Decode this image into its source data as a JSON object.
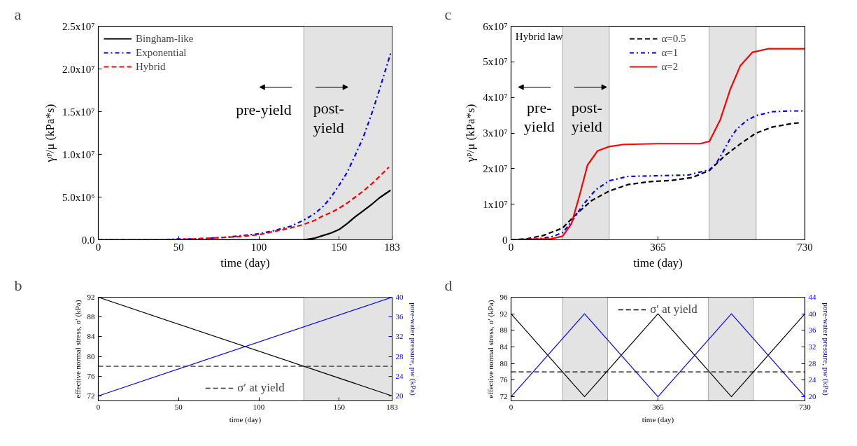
{
  "chart_data": [
    {
      "type": "line",
      "title": "a",
      "xlabel": "time (day)",
      "ylabel": "γᵖ/μ (kPa*s)",
      "xlim": [
        0,
        183
      ],
      "xticks": [
        0,
        50,
        100,
        150,
        183
      ],
      "ylim": [
        0,
        25000000
      ],
      "yticks": [
        {
          "value": 0,
          "label": "0.0"
        },
        {
          "value": 5000000,
          "label": "5.0x10⁶"
        },
        {
          "value": 10000000,
          "label": "1.0x10⁷"
        },
        {
          "value": 15000000,
          "label": "1.5x10⁷"
        },
        {
          "value": 20000000,
          "label": "2.0x10⁷"
        },
        {
          "value": 25000000,
          "label": "2.5x10⁷"
        }
      ],
      "legend": "top left",
      "bands": [
        {
          "axis": "x",
          "from": 128,
          "to": 183,
          "color": "#e3e3e3"
        }
      ],
      "annotations": [
        "pre-yield",
        "post-\nyield"
      ],
      "series": [
        {
          "name": "Bingham-like",
          "color": "#000000",
          "line_style": "solid",
          "x": [
            0,
            50,
            100,
            128,
            135,
            140,
            145,
            150,
            155,
            160,
            165,
            170,
            175,
            182
          ],
          "values": [
            0,
            0,
            0,
            0,
            200000,
            500000,
            800000,
            1200000,
            1900000,
            2700000,
            3400000,
            4100000,
            4900000,
            5800000
          ]
        },
        {
          "name": "Exponential",
          "color": "#0000ff",
          "line_style": "dashdot",
          "x": [
            0,
            20,
            40,
            50,
            60,
            70,
            80,
            90,
            100,
            110,
            120,
            128,
            135,
            140,
            145,
            150,
            155,
            160,
            165,
            170,
            175,
            182
          ],
          "values": [
            0,
            0,
            0,
            100000,
            100000,
            200000,
            300000,
            500000,
            700000,
            1100000,
            1600000,
            2300000,
            3100000,
            3900000,
            5000000,
            6400000,
            7900000,
            9900000,
            12000000,
            14600000,
            17500000,
            21800000
          ]
        },
        {
          "name": "Hybrid",
          "color": "#ff0000",
          "line_style": "dashed",
          "x": [
            0,
            20,
            40,
            60,
            70,
            80,
            90,
            100,
            110,
            120,
            128,
            135,
            140,
            145,
            150,
            155,
            160,
            165,
            170,
            175,
            181
          ],
          "values": [
            0,
            0,
            0,
            100000,
            200000,
            300000,
            400000,
            600000,
            1000000,
            1400000,
            1800000,
            2300000,
            2800000,
            3200000,
            3700000,
            4300000,
            5000000,
            5700000,
            6500000,
            7400000,
            8500000
          ]
        }
      ]
    },
    {
      "type": "line",
      "title": "b",
      "xlabel": "time (day)",
      "ylabel": "effective normal stress, σ′ (kPa)",
      "y2label": "pore-water pressure, pw (kPa)",
      "xlim": [
        0,
        183
      ],
      "xticks": [
        0,
        50,
        100,
        150,
        183
      ],
      "ylim": [
        71,
        92
      ],
      "yticks": [
        72,
        76,
        80,
        84,
        88,
        92
      ],
      "y2lim": [
        19,
        40
      ],
      "y2ticks": [
        20,
        24,
        28,
        32,
        36,
        40
      ],
      "legend": "bottom",
      "bands": [
        {
          "axis": "x",
          "from": 128,
          "to": 183,
          "color": "#e3e3e3"
        }
      ],
      "ref_lines": [
        {
          "axis": "y",
          "value": 78,
          "label": "σ′ at yield",
          "color": "#333333",
          "line_style": "dashed"
        }
      ],
      "series": [
        {
          "color": "#000000",
          "x": [
            0,
            183
          ],
          "values": [
            92,
            72
          ]
        },
        {
          "color": "#0000ff",
          "axis": "y2",
          "x": [
            0,
            183
          ],
          "values": [
            20,
            40
          ]
        }
      ]
    },
    {
      "type": "line",
      "title": "c",
      "xlabel": "time (day)",
      "ylabel": "γᵖ/μ (kPa*s)",
      "xlim": [
        0,
        730
      ],
      "xticks": [
        0,
        365,
        730
      ],
      "ylim": [
        0,
        60000000
      ],
      "yticks": [
        {
          "value": 0,
          "label": "0"
        },
        {
          "value": 10000000,
          "label": "1x10⁷"
        },
        {
          "value": 20000000,
          "label": "2x10⁷"
        },
        {
          "value": 30000000,
          "label": "3x10⁷"
        },
        {
          "value": 40000000,
          "label": "4x10⁷"
        },
        {
          "value": 50000000,
          "label": "5x10⁷"
        },
        {
          "value": 60000000,
          "label": "6x10⁷"
        }
      ],
      "legend": "top",
      "bands": [
        {
          "axis": "x",
          "from": 128,
          "to": 244,
          "color": "#e3e3e3"
        },
        {
          "axis": "x",
          "from": 492,
          "to": 609,
          "color": "#e3e3e3"
        }
      ],
      "annotations": [
        "Hybrid law",
        "pre-\nyield",
        "post-\nyield"
      ],
      "series": [
        {
          "name": "α=0.5",
          "color": "#000000",
          "line_style": "dashed",
          "x": [
            0,
            40,
            80,
            128,
            160,
            200,
            244,
            290,
            340,
            400,
            450,
            493,
            530,
            570,
            609,
            650,
            700,
            720
          ],
          "values": [
            0,
            300000,
            1200000,
            3300000,
            7000000,
            11000000,
            13700000,
            15500000,
            16300000,
            16700000,
            17500000,
            19500000,
            23500000,
            27000000,
            30000000,
            31700000,
            32700000,
            32900000
          ]
        },
        {
          "name": "α=1",
          "color": "#0000ff",
          "line_style": "dashdot",
          "x": [
            0,
            60,
            100,
            128,
            150,
            180,
            210,
            244,
            290,
            365,
            440,
            493,
            510,
            528,
            545,
            560,
            585,
            609,
            650,
            690,
            730
          ],
          "values": [
            0,
            200000,
            800000,
            2000000,
            5000000,
            10000000,
            14000000,
            16600000,
            17800000,
            18000000,
            18200000,
            19700000,
            21500000,
            25000000,
            28500000,
            31000000,
            33500000,
            34900000,
            36000000,
            36200000,
            36200000
          ]
        },
        {
          "name": "α=2",
          "color": "#ff0000",
          "line_style": "solid",
          "x": [
            0,
            100,
            128,
            150,
            170,
            190,
            215,
            244,
            280,
            365,
            470,
            493,
            520,
            545,
            570,
            600,
            640,
            730
          ],
          "values": [
            0,
            300000,
            1000000,
            4500000,
            12400000,
            21000000,
            25000000,
            26200000,
            26800000,
            27000000,
            27000000,
            27700000,
            33800000,
            42400000,
            49000000,
            52700000,
            53700000,
            53700000
          ]
        }
      ]
    },
    {
      "type": "line",
      "title": "d",
      "xlabel": "time (day)",
      "ylabel": "effective normal stress, σ′ (kPa)",
      "y2label": "pore-water pressure, pw (kPa)",
      "xlim": [
        0,
        730
      ],
      "xticks": [
        0,
        365,
        730
      ],
      "ylim": [
        71,
        96
      ],
      "yticks": [
        72,
        76,
        80,
        84,
        88,
        92,
        96
      ],
      "y2lim": [
        19,
        44
      ],
      "y2ticks": [
        20,
        24,
        28,
        32,
        36,
        40,
        44
      ],
      "legend": "top",
      "bands": [
        {
          "axis": "x",
          "from": 128,
          "to": 240,
          "color": "#e3e3e3"
        },
        {
          "axis": "x",
          "from": 490,
          "to": 602,
          "color": "#e3e3e3"
        }
      ],
      "ref_lines": [
        {
          "axis": "y",
          "value": 78,
          "label": "σ′ at yield",
          "color": "#000000",
          "line_style": "dashed"
        }
      ],
      "series": [
        {
          "color": "#000000",
          "x": [
            0,
            182.5,
            365,
            547.5,
            730
          ],
          "values": [
            92,
            72,
            92,
            72,
            92
          ]
        },
        {
          "color": "#0000ff",
          "axis": "y2",
          "x": [
            0,
            182.5,
            365,
            547.5,
            730
          ],
          "values": [
            20,
            40,
            20,
            40,
            20
          ]
        }
      ]
    }
  ]
}
